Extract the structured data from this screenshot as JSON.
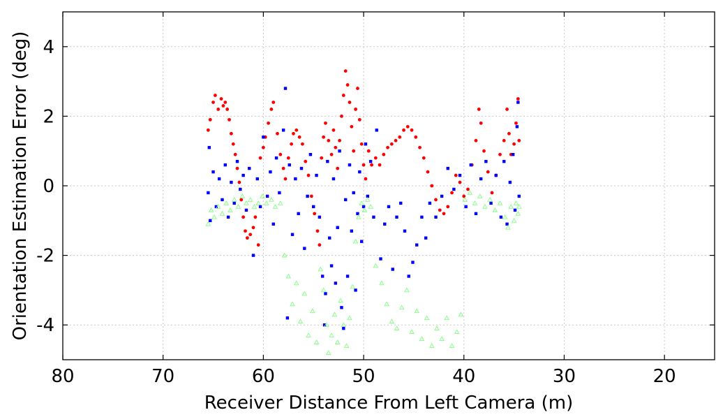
{
  "chart_data": {
    "type": "scatter",
    "title": "",
    "xlabel": "Receiver Distance From Left Camera (m)",
    "ylabel": "Orientation Estimation Error (deg)",
    "xlim": [
      80,
      15
    ],
    "ylim": [
      -5,
      5
    ],
    "x_reversed": true,
    "xticks": [
      80,
      70,
      60,
      50,
      40,
      30,
      20
    ],
    "yticks": [
      4,
      2,
      0,
      -2,
      -4
    ],
    "xtick_labels": [
      "80",
      "70",
      "60",
      "50",
      "40",
      "30",
      "20"
    ],
    "ytick_labels": [
      "4",
      "2",
      "0",
      "-2",
      "-4"
    ],
    "grid": true,
    "legend": "none",
    "series": [
      {
        "color": "#ff0000",
        "marker": "circle",
        "x_range": [
          65.5,
          34.5
        ],
        "points": [
          [
            65.5,
            1.6
          ],
          [
            65.3,
            1.9
          ],
          [
            65.0,
            2.4
          ],
          [
            64.8,
            2.6
          ],
          [
            64.5,
            2.2
          ],
          [
            64.2,
            2.5
          ],
          [
            64.0,
            2.3
          ],
          [
            63.8,
            2.4
          ],
          [
            63.6,
            2.2
          ],
          [
            63.4,
            1.9
          ],
          [
            63.2,
            1.5
          ],
          [
            63.0,
            1.2
          ],
          [
            62.8,
            0.9
          ],
          [
            62.6,
            0.5
          ],
          [
            62.4,
            0.1
          ],
          [
            62.2,
            -0.4
          ],
          [
            62.0,
            -0.9
          ],
          [
            61.8,
            -1.3
          ],
          [
            61.6,
            -1.5
          ],
          [
            61.3,
            -1.4
          ],
          [
            61.0,
            -1.2
          ],
          [
            60.8,
            -0.9
          ],
          [
            60.5,
            -1.7
          ],
          [
            60.3,
            0.8
          ],
          [
            60.0,
            1.1
          ],
          [
            59.8,
            1.4
          ],
          [
            59.5,
            1.8
          ],
          [
            59.2,
            2.2
          ],
          [
            59.0,
            2.4
          ],
          [
            58.6,
            1.5
          ],
          [
            58.3,
            0.9
          ],
          [
            58.0,
            0.5
          ],
          [
            57.8,
            0.2
          ],
          [
            57.5,
            0.8
          ],
          [
            57.2,
            1.2
          ],
          [
            57.0,
            1.5
          ],
          [
            56.7,
            1.6
          ],
          [
            56.4,
            1.4
          ],
          [
            56.1,
            1.2
          ],
          [
            55.8,
            0.7
          ],
          [
            55.5,
            0.3
          ],
          [
            55.2,
            -0.3
          ],
          [
            54.9,
            -0.8
          ],
          [
            54.6,
            -1.3
          ],
          [
            54.4,
            -1.7
          ],
          [
            54.2,
            0.8
          ],
          [
            54.0,
            1.4
          ],
          [
            53.8,
            1.8
          ],
          [
            53.5,
            1.3
          ],
          [
            53.2,
            0.9
          ],
          [
            53.0,
            1.6
          ],
          [
            52.8,
            1.1
          ],
          [
            52.6,
            0.5
          ],
          [
            52.4,
            1.3
          ],
          [
            52.2,
            2.0
          ],
          [
            52.0,
            2.6
          ],
          [
            51.8,
            3.3
          ],
          [
            51.6,
            2.9
          ],
          [
            51.4,
            2.4
          ],
          [
            51.2,
            1.7
          ],
          [
            51.0,
            1.0
          ],
          [
            50.8,
            2.2
          ],
          [
            50.6,
            2.8
          ],
          [
            50.4,
            1.9
          ],
          [
            50.2,
            1.2
          ],
          [
            50.0,
            0.6
          ],
          [
            49.8,
            0.2
          ],
          [
            49.5,
            1.0
          ],
          [
            49.2,
            0.6
          ],
          [
            48.8,
            0.8
          ],
          [
            48.4,
            0.6
          ],
          [
            48.0,
            0.9
          ],
          [
            47.6,
            1.1
          ],
          [
            47.2,
            1.2
          ],
          [
            46.8,
            1.3
          ],
          [
            46.4,
            1.4
          ],
          [
            46.0,
            1.6
          ],
          [
            45.6,
            1.7
          ],
          [
            45.2,
            1.6
          ],
          [
            44.8,
            1.4
          ],
          [
            44.4,
            1.1
          ],
          [
            44.0,
            0.8
          ],
          [
            43.6,
            0.4
          ],
          [
            43.2,
            0.0
          ],
          [
            42.8,
            -0.4
          ],
          [
            42.4,
            -0.7
          ],
          [
            42.0,
            -0.8
          ],
          [
            41.6,
            -0.6
          ],
          [
            41.2,
            -0.2
          ],
          [
            40.8,
            0.3
          ],
          [
            40.4,
            0.1
          ],
          [
            40.0,
            -0.3
          ],
          [
            39.6,
            -0.1
          ],
          [
            39.2,
            0.6
          ],
          [
            38.8,
            1.3
          ],
          [
            38.5,
            2.2
          ],
          [
            38.3,
            1.8
          ],
          [
            38.0,
            1.0
          ],
          [
            37.6,
            0.4
          ],
          [
            37.2,
            -0.2
          ],
          [
            36.8,
            0.3
          ],
          [
            36.4,
            0.9
          ],
          [
            36.0,
            1.3
          ],
          [
            35.7,
            2.2
          ],
          [
            35.5,
            1.5
          ],
          [
            35.3,
            0.9
          ],
          [
            35.0,
            1.2
          ],
          [
            34.8,
            1.8
          ],
          [
            34.6,
            2.5
          ],
          [
            34.5,
            1.3
          ]
        ]
      },
      {
        "color": "#0000ff",
        "marker": "square",
        "x_range": [
          65.5,
          34.5
        ],
        "points": [
          [
            65.5,
            -0.2
          ],
          [
            65.4,
            1.1
          ],
          [
            65.3,
            -1.0
          ],
          [
            65.0,
            0.4
          ],
          [
            64.7,
            -0.6
          ],
          [
            64.4,
            0.2
          ],
          [
            64.1,
            -0.4
          ],
          [
            63.8,
            0.6
          ],
          [
            63.5,
            -0.9
          ],
          [
            63.2,
            0.1
          ],
          [
            62.9,
            -0.5
          ],
          [
            62.6,
            0.7
          ],
          [
            62.3,
            -0.1
          ],
          [
            62.0,
            0.3
          ],
          [
            61.7,
            -0.7
          ],
          [
            61.4,
            0.5
          ],
          [
            61.0,
            -2.0
          ],
          [
            60.6,
            0.2
          ],
          [
            60.3,
            -0.6
          ],
          [
            60.0,
            1.4
          ],
          [
            59.6,
            -0.3
          ],
          [
            59.3,
            0.4
          ],
          [
            59.0,
            -1.1
          ],
          [
            58.7,
            0.8
          ],
          [
            58.4,
            -0.2
          ],
          [
            58.0,
            1.6
          ],
          [
            57.8,
            2.8
          ],
          [
            57.6,
            -3.8
          ],
          [
            57.4,
            0.6
          ],
          [
            57.1,
            -1.4
          ],
          [
            56.8,
            0.2
          ],
          [
            56.5,
            -0.8
          ],
          [
            56.2,
            0.5
          ],
          [
            55.9,
            -1.8
          ],
          [
            55.6,
            -0.3
          ],
          [
            55.3,
            0.9
          ],
          [
            55.0,
            -0.6
          ],
          [
            54.7,
            0.3
          ],
          [
            54.4,
            -0.9
          ],
          [
            54.1,
            -2.6
          ],
          [
            53.9,
            -4.0
          ],
          [
            53.8,
            -3.1
          ],
          [
            53.6,
            0.7
          ],
          [
            53.4,
            -1.5
          ],
          [
            53.2,
            -2.3
          ],
          [
            53.0,
            0.2
          ],
          [
            52.8,
            -2.8
          ],
          [
            52.6,
            -1.2
          ],
          [
            52.4,
            1.0
          ],
          [
            52.2,
            -3.5
          ],
          [
            52.0,
            -4.1
          ],
          [
            51.8,
            -0.4
          ],
          [
            51.6,
            -2.6
          ],
          [
            51.4,
            0.6
          ],
          [
            51.2,
            -1.3
          ],
          [
            51.0,
            -0.2
          ],
          [
            50.8,
            -3.0
          ],
          [
            50.6,
            -0.8
          ],
          [
            50.4,
            0.4
          ],
          [
            50.2,
            -1.6
          ],
          [
            50.0,
            -0.6
          ],
          [
            49.8,
            1.2
          ],
          [
            49.6,
            -0.3
          ],
          [
            49.3,
            0.7
          ],
          [
            49.0,
            -0.9
          ],
          [
            48.7,
            1.6
          ],
          [
            48.3,
            -2.1
          ],
          [
            47.9,
            -1.1
          ],
          [
            47.5,
            -0.6
          ],
          [
            47.1,
            -2.4
          ],
          [
            46.7,
            -0.9
          ],
          [
            46.3,
            -0.5
          ],
          [
            45.9,
            -1.3
          ],
          [
            45.5,
            -2.6
          ],
          [
            45.1,
            -2.2
          ],
          [
            44.7,
            -1.7
          ],
          [
            44.2,
            -0.9
          ],
          [
            43.8,
            -1.5
          ],
          [
            43.4,
            -0.5
          ],
          [
            42.8,
            -0.9
          ],
          [
            42.2,
            -0.3
          ],
          [
            41.6,
            0.5
          ],
          [
            41.0,
            -0.1
          ],
          [
            40.4,
            0.3
          ],
          [
            39.8,
            -0.6
          ],
          [
            39.3,
            0.6
          ],
          [
            38.8,
            -0.8
          ],
          [
            38.3,
            0.2
          ],
          [
            37.8,
            0.7
          ],
          [
            37.3,
            -0.5
          ],
          [
            36.8,
            0.3
          ],
          [
            36.3,
            -0.9
          ],
          [
            36.0,
            0.7
          ],
          [
            35.7,
            -1.1
          ],
          [
            35.4,
            0.1
          ],
          [
            35.1,
            0.9
          ],
          [
            34.9,
            -0.7
          ],
          [
            34.7,
            1.7
          ],
          [
            34.6,
            2.4
          ],
          [
            34.5,
            -0.3
          ]
        ]
      },
      {
        "color": "#80ff80",
        "marker": "triangle",
        "x_range": [
          65.5,
          34.5
        ],
        "points": [
          [
            65.5,
            -1.1
          ],
          [
            65.2,
            -0.7
          ],
          [
            64.9,
            -0.9
          ],
          [
            64.5,
            -0.6
          ],
          [
            64.1,
            -0.8
          ],
          [
            63.7,
            -0.5
          ],
          [
            63.3,
            -0.7
          ],
          [
            62.9,
            -0.4
          ],
          [
            62.5,
            -0.6
          ],
          [
            62.1,
            -0.3
          ],
          [
            61.7,
            -0.5
          ],
          [
            61.3,
            -0.4
          ],
          [
            60.9,
            -0.6
          ],
          [
            60.5,
            -0.5
          ],
          [
            60.1,
            -0.3
          ],
          [
            59.7,
            -0.5
          ],
          [
            59.2,
            -0.4
          ],
          [
            58.8,
            -0.6
          ],
          [
            58.3,
            -0.5
          ],
          [
            57.9,
            -2.0
          ],
          [
            57.5,
            -2.6
          ],
          [
            57.1,
            -3.4
          ],
          [
            56.7,
            -2.8
          ],
          [
            56.3,
            -3.9
          ],
          [
            55.9,
            -3.1
          ],
          [
            55.5,
            -4.3
          ],
          [
            55.1,
            -3.6
          ],
          [
            54.7,
            -4.5
          ],
          [
            54.3,
            -2.4
          ],
          [
            54.0,
            -3.0
          ],
          [
            53.7,
            -4.0
          ],
          [
            53.5,
            -4.8
          ],
          [
            53.2,
            -4.3
          ],
          [
            52.9,
            -3.7
          ],
          [
            52.6,
            -4.5
          ],
          [
            52.3,
            -3.3
          ],
          [
            52.0,
            -4.0
          ],
          [
            51.7,
            -4.6
          ],
          [
            51.4,
            -3.8
          ],
          [
            51.1,
            -2.9
          ],
          [
            50.8,
            -1.6
          ],
          [
            50.5,
            -0.9
          ],
          [
            50.2,
            -0.5
          ],
          [
            49.9,
            -0.7
          ],
          [
            49.6,
            -0.4
          ],
          [
            49.3,
            -0.6
          ],
          [
            48.8,
            -2.3
          ],
          [
            48.2,
            -2.8
          ],
          [
            47.7,
            -3.4
          ],
          [
            47.2,
            -3.9
          ],
          [
            46.7,
            -4.1
          ],
          [
            46.2,
            -3.5
          ],
          [
            45.7,
            -3.0
          ],
          [
            45.2,
            -4.2
          ],
          [
            44.7,
            -3.6
          ],
          [
            44.2,
            -4.4
          ],
          [
            43.7,
            -3.8
          ],
          [
            43.2,
            -4.6
          ],
          [
            42.7,
            -4.1
          ],
          [
            42.2,
            -4.4
          ],
          [
            41.7,
            -3.8
          ],
          [
            41.2,
            -4.6
          ],
          [
            40.7,
            -4.2
          ],
          [
            40.3,
            -3.7
          ],
          [
            39.9,
            -0.4
          ],
          [
            39.4,
            -0.2
          ],
          [
            38.9,
            -0.5
          ],
          [
            38.4,
            -0.3
          ],
          [
            37.9,
            -0.6
          ],
          [
            37.4,
            -0.4
          ],
          [
            36.9,
            -0.7
          ],
          [
            36.4,
            -0.5
          ],
          [
            35.9,
            -0.9
          ],
          [
            35.6,
            -1.2
          ],
          [
            35.3,
            -0.6
          ],
          [
            35.0,
            -1.0
          ],
          [
            34.8,
            -0.5
          ],
          [
            34.6,
            -0.8
          ],
          [
            34.5,
            -0.6
          ]
        ]
      }
    ]
  }
}
